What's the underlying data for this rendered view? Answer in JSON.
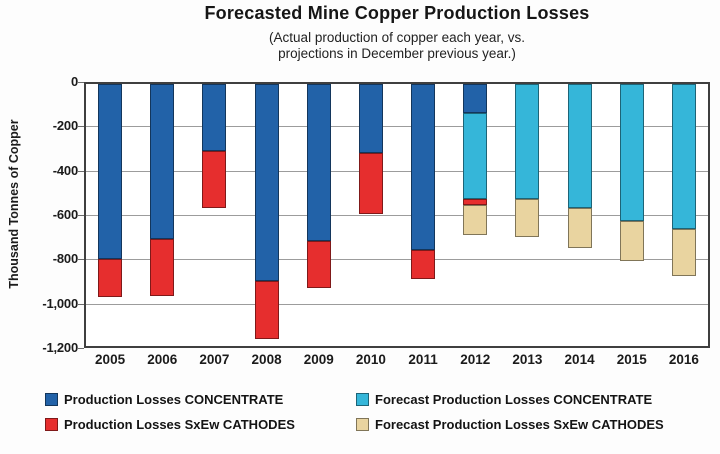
{
  "title": "Forecasted Mine Copper Production Losses",
  "subtitle_line1": "(Actual production of copper each year, vs.",
  "subtitle_line2": "projections in December previous year.)",
  "chart_data": {
    "type": "bar",
    "stacked": true,
    "orientation": "vertical",
    "title": "Forecasted Mine Copper Production Losses",
    "subtitle": "(Actual production of copper each year, vs. projections in December previous year.)",
    "xlabel": "",
    "ylabel": "Thousand Tonnes of Copper",
    "ylim": [
      -1200,
      0
    ],
    "yticks": [
      0,
      -200,
      -400,
      -600,
      -800,
      -1000,
      -1200
    ],
    "ytick_labels": [
      "0",
      "-200",
      "-400",
      "-600",
      "-800",
      "-1,000",
      "-1,200"
    ],
    "grid": true,
    "legend_position": "bottom",
    "categories": [
      "2005",
      "2006",
      "2007",
      "2008",
      "2009",
      "2010",
      "2011",
      "2012",
      "2013",
      "2014",
      "2015",
      "2016"
    ],
    "series": [
      {
        "name": "Production Losses CONCENTRATE",
        "color": "#2262a8",
        "values": [
          -790,
          -700,
          -300,
          -890,
          -710,
          -310,
          -750,
          -130,
          0,
          0,
          0,
          0
        ]
      },
      {
        "name": "Forecast Production Losses CONCENTRATE",
        "color": "#35b6d9",
        "values": [
          0,
          0,
          0,
          0,
          0,
          0,
          0,
          -390,
          -520,
          -560,
          -620,
          -655
        ]
      },
      {
        "name": "Production Losses SxEw CATHODES",
        "color": "#e62e2e",
        "values": [
          -170,
          -255,
          -260,
          -260,
          -210,
          -275,
          -130,
          -25,
          0,
          0,
          0,
          0
        ]
      },
      {
        "name": "Forecast Production Losses SxEw CATHODES",
        "color": "#e9d4a0",
        "values": [
          0,
          0,
          0,
          0,
          0,
          0,
          0,
          -135,
          -170,
          -180,
          -180,
          -210
        ]
      }
    ],
    "totals_by_year": [
      -960,
      -955,
      -560,
      -1150,
      -920,
      -585,
      -880,
      -680,
      -690,
      -740,
      -800,
      -865
    ]
  },
  "legend": {
    "items": [
      {
        "label": "Production Losses CONCENTRATE",
        "color": "#2262a8"
      },
      {
        "label": "Production Losses SxEw CATHODES",
        "color": "#e62e2e"
      },
      {
        "label": "Forecast Production Losses CONCENTRATE",
        "color": "#35b6d9"
      },
      {
        "label": "Forecast Production Losses SxEw CATHODES",
        "color": "#e9d4a0"
      }
    ]
  }
}
